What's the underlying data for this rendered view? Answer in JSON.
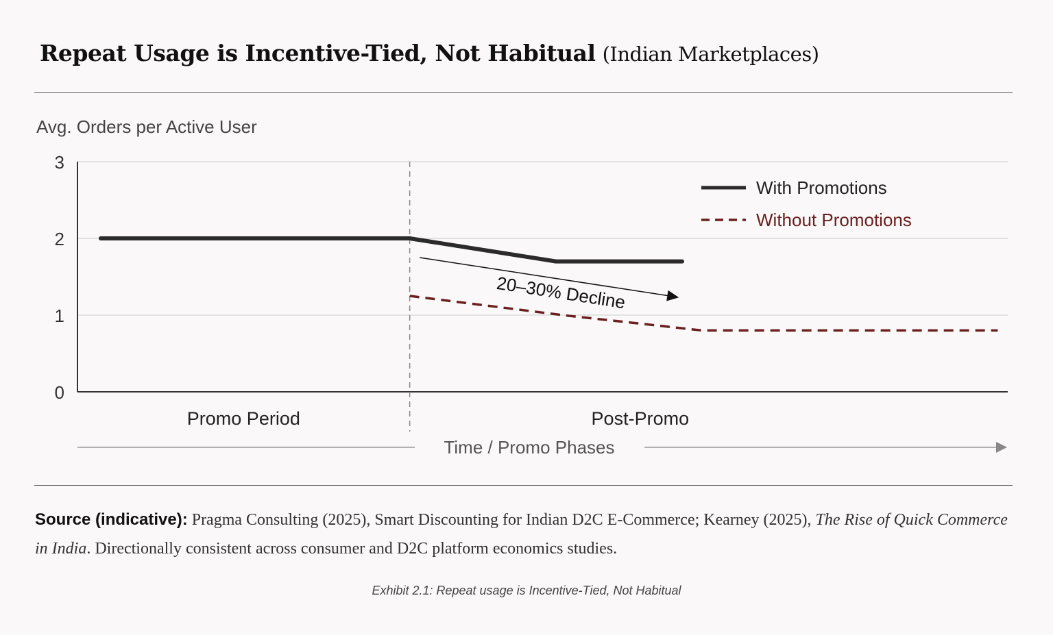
{
  "title": {
    "main": "Repeat Usage is Incentive-Tied, Not Habitual",
    "sub": "(Indian Marketplaces)"
  },
  "chart_data": {
    "type": "line",
    "title": "Repeat Usage is Incentive-Tied, Not Habitual (Indian Marketplaces)",
    "ylabel": "Avg. Orders per Active User",
    "xlabel": "Time / Promo Phases",
    "ylim": [
      0,
      3
    ],
    "xlim": [
      0,
      14
    ],
    "yticks": [
      "0",
      "1",
      "2",
      "3"
    ],
    "grid": true,
    "phases": [
      {
        "label": "Promo Period",
        "start": 0,
        "end": 5
      },
      {
        "label": "Post-Promo",
        "start": 5,
        "end": 14
      }
    ],
    "phase_boundary": 5,
    "legend_position": "top-right",
    "series": [
      {
        "name": "With Promotions",
        "color": "#2b2b2b",
        "style": "solid",
        "points": [
          [
            0.35,
            2.0
          ],
          [
            5,
            2.0
          ],
          [
            7.2,
            1.7
          ],
          [
            9.1,
            1.7
          ]
        ]
      },
      {
        "name": "Without Promotions",
        "color": "#6b1f1f",
        "style": "dashed",
        "points": [
          [
            5,
            1.25
          ],
          [
            7.3,
            1.0
          ],
          [
            9.4,
            0.8
          ],
          [
            13.85,
            0.8
          ]
        ]
      }
    ],
    "annotation": {
      "text": "20–30% Decline",
      "from": [
        5.15,
        1.75
      ],
      "to": [
        9.05,
        1.23
      ]
    }
  },
  "source": {
    "label": "Source (indicative):",
    "text1": " Pragma Consulting (2025), Smart Discounting for Indian D2C E-Commerce; Kearney (2025), ",
    "italic": "The Rise of Quick Commerce in India",
    "text2": ". Directionally consistent across consumer and D2C platform economics studies."
  },
  "caption": "Exhibit 2.1: Repeat usage is Incentive-Tied, Not Habitual"
}
